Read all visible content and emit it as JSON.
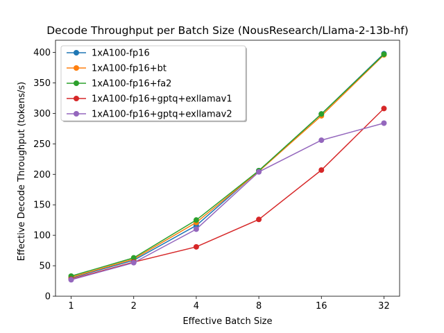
{
  "chart_data": {
    "type": "line",
    "title": "Decode Throughput per Batch Size (NousResearch/Llama-2-13b-hf)",
    "xlabel": "Effective Batch Size",
    "ylabel": "Effective Decode Throughput (tokens/s)",
    "x_scale": "log2",
    "x": [
      1,
      2,
      4,
      8,
      16,
      32
    ],
    "x_tick_labels": [
      "1",
      "2",
      "4",
      "8",
      "16",
      "32"
    ],
    "ylim": [
      0,
      420
    ],
    "y_ticks": [
      0,
      50,
      100,
      150,
      200,
      250,
      300,
      350,
      400
    ],
    "grid": false,
    "legend_position": "top-left",
    "series": [
      {
        "name": "1xA100-fp16",
        "color": "#1f77b4",
        "values": [
          30,
          59,
          116,
          206,
          299,
          398
        ]
      },
      {
        "name": "1xA100-fp16+bt",
        "color": "#ff7f0e",
        "values": [
          31,
          61,
          121,
          205,
          296,
          396
        ]
      },
      {
        "name": "1xA100-fp16+fa2",
        "color": "#2ca02c",
        "values": [
          33,
          63,
          125,
          206,
          299,
          397
        ]
      },
      {
        "name": "1xA100-fp16+gptq+exllamav1",
        "color": "#d62728",
        "values": [
          28,
          56,
          81,
          126,
          207,
          308
        ]
      },
      {
        "name": "1xA100-fp16+gptq+exllamav2",
        "color": "#9467bd",
        "values": [
          27,
          55,
          110,
          204,
          256,
          284
        ]
      }
    ]
  }
}
